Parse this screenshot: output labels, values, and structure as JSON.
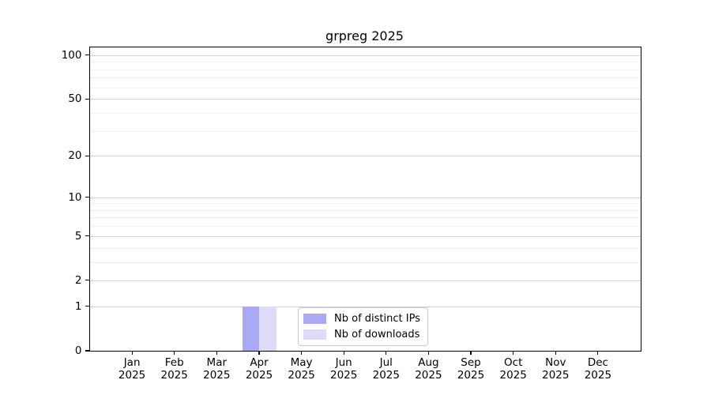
{
  "chart_data": {
    "type": "bar",
    "title": "grpreg 2025",
    "categories": [
      "Jan",
      "Feb",
      "Mar",
      "Apr",
      "May",
      "Jun",
      "Jul",
      "Aug",
      "Sep",
      "Oct",
      "Nov",
      "Dec"
    ],
    "x_year": "2025",
    "series": [
      {
        "name": "Nb of distinct IPs",
        "color": "#a9a9f4",
        "values": [
          0,
          0,
          0,
          1,
          0,
          0,
          0,
          0,
          0,
          0,
          0,
          0
        ]
      },
      {
        "name": "Nb of downloads",
        "color": "#dcdcf9",
        "values": [
          0,
          0,
          0,
          1,
          0,
          0,
          0,
          0,
          0,
          0,
          0,
          0
        ]
      }
    ],
    "y_scale": "log1p",
    "y_ticks": [
      0,
      1,
      2,
      5,
      10,
      20,
      50,
      100
    ],
    "y_minor_ticks": [
      3,
      4,
      6,
      7,
      8,
      9,
      30,
      40,
      60,
      70,
      80,
      90
    ],
    "ylim": [
      0,
      113
    ],
    "grid": "horizontal",
    "legend_position": "bottom-center",
    "colors": {
      "major_grid": "#d2d2d2",
      "minor_grid": "#efefef",
      "spine": "#000000",
      "background": "#ffffff"
    }
  }
}
